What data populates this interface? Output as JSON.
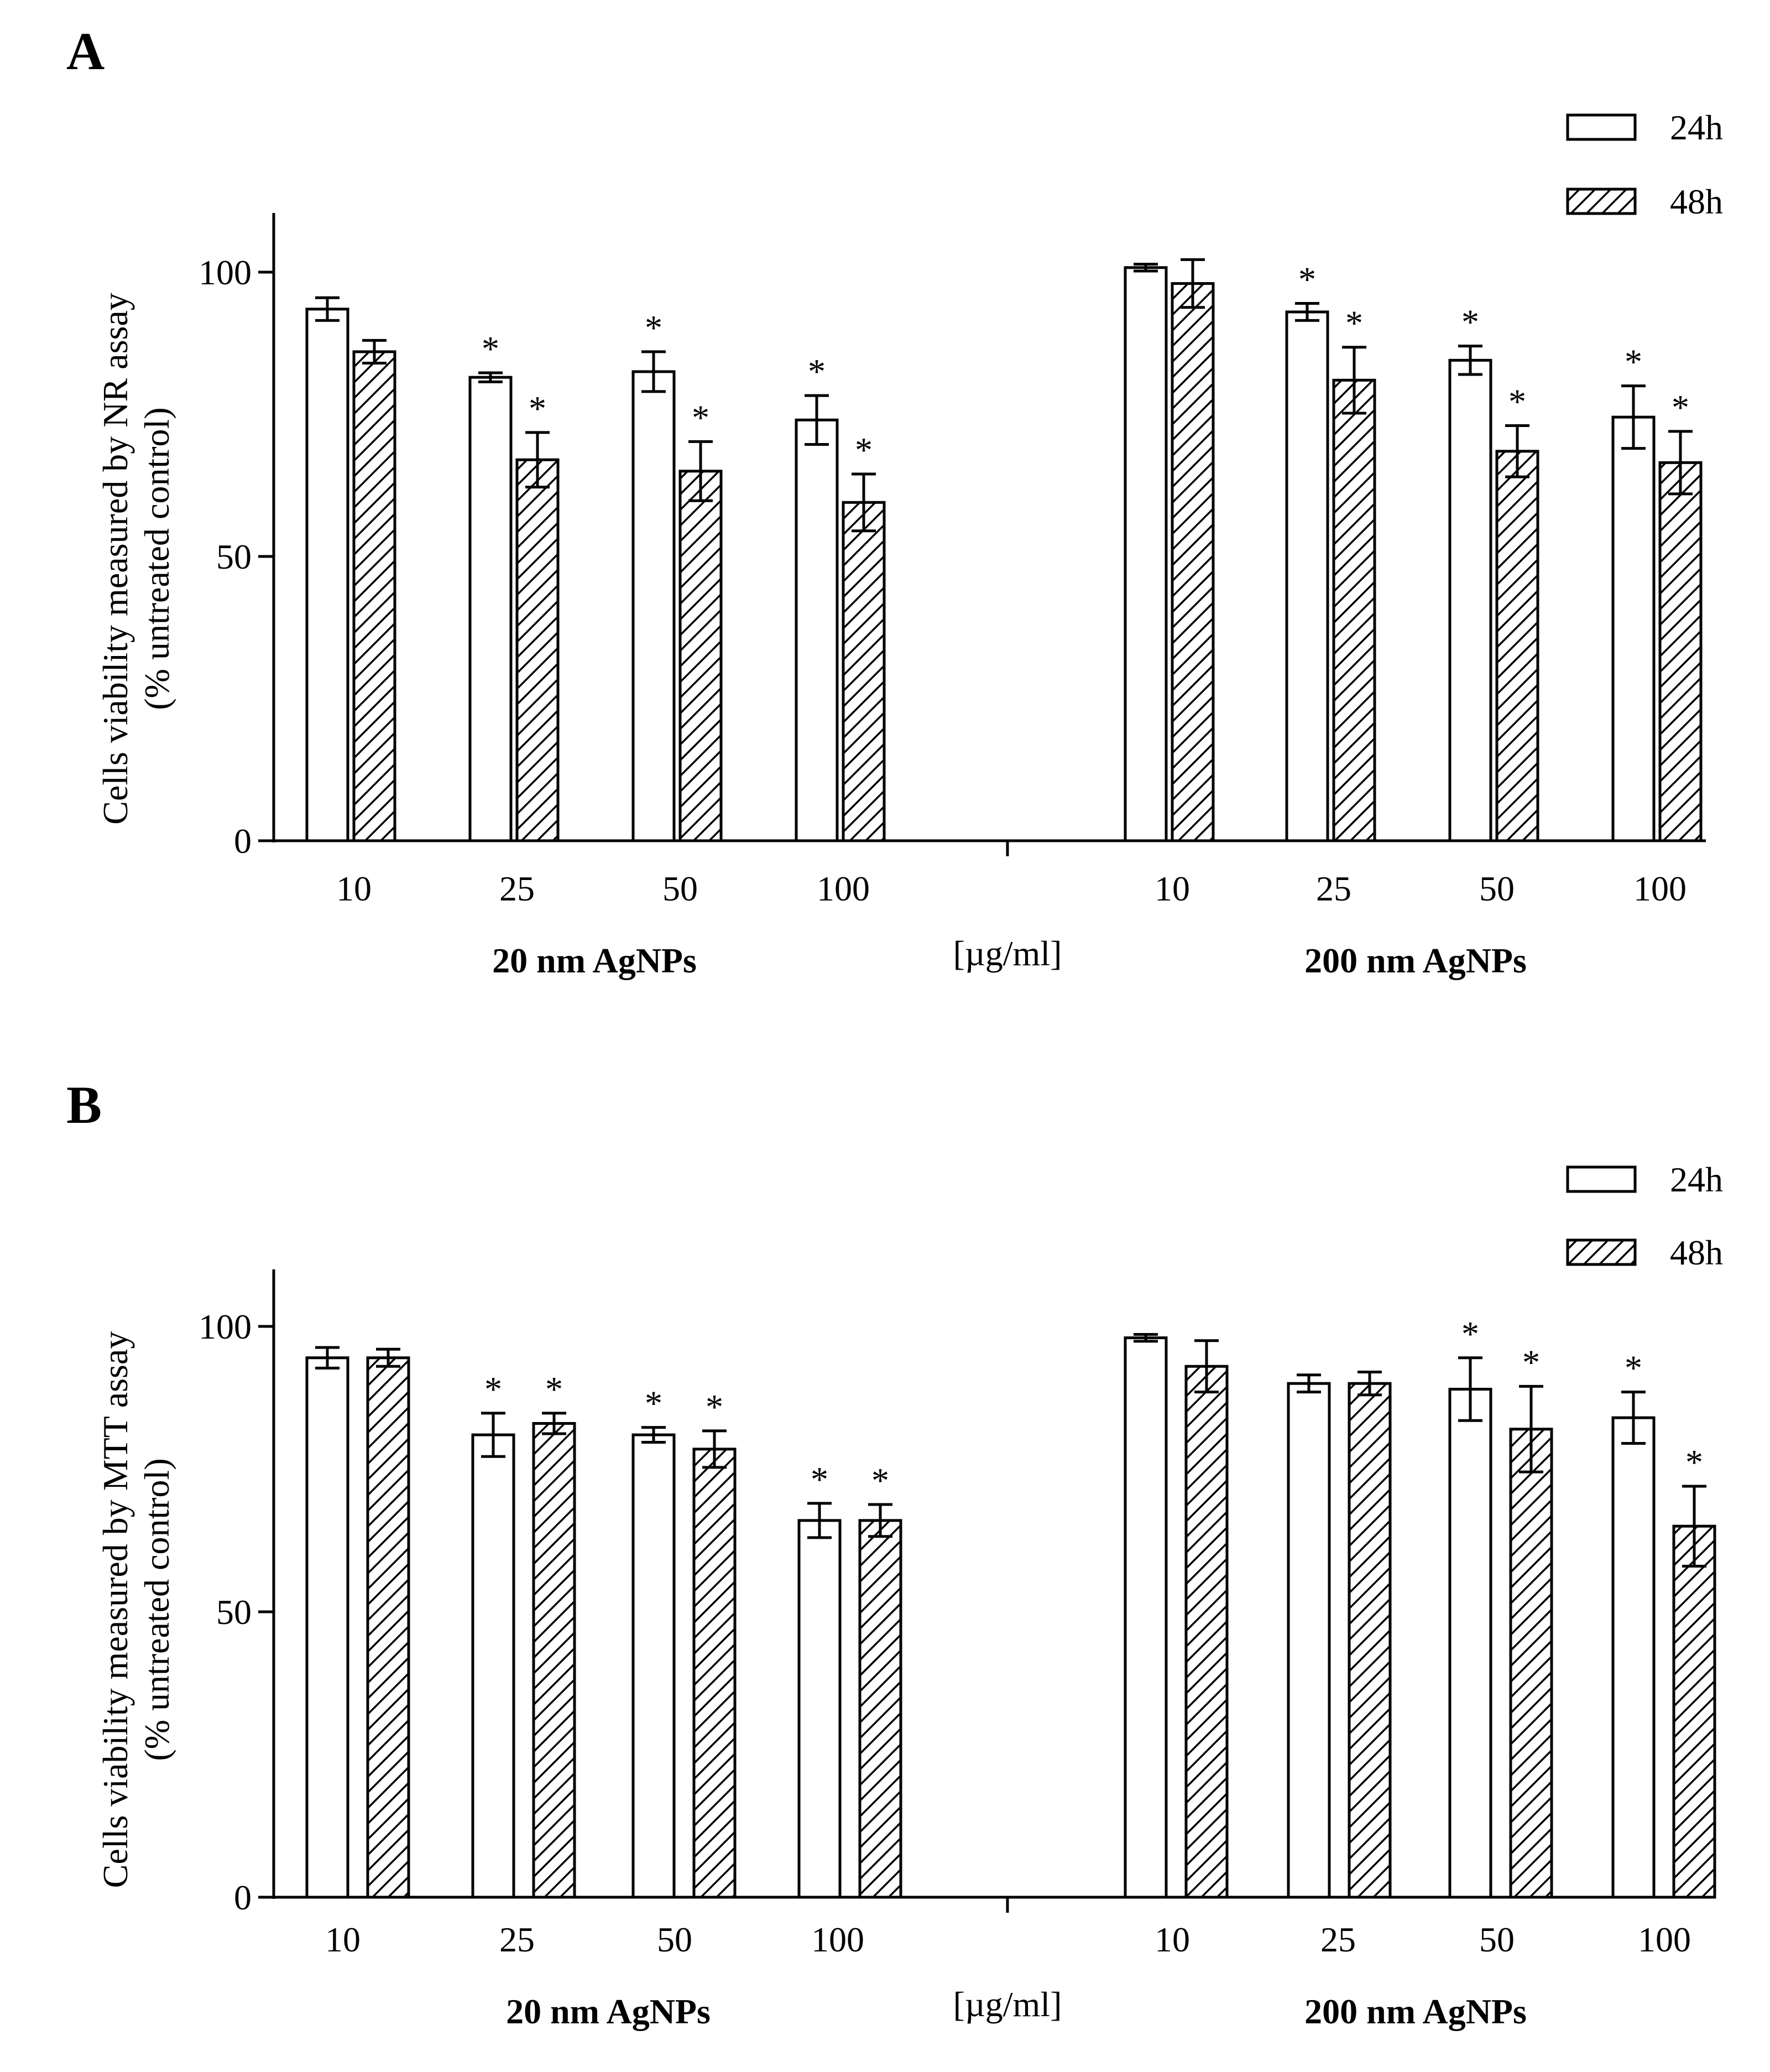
{
  "chart_data": [
    {
      "type": "bar",
      "panel_label": "A",
      "ylabel": [
        "Cells viability measured by NR assay",
        "(% untreated control)"
      ],
      "ylim": [
        0,
        110
      ],
      "yticks": [
        0,
        50,
        100
      ],
      "unit_label": "[µg/ml]",
      "legend": [
        {
          "name": "24h",
          "pattern": "open"
        },
        {
          "name": "48h",
          "pattern": "hatched"
        }
      ],
      "groups": [
        {
          "label": "20 nm AgNPs",
          "categories": [
            "10",
            "25",
            "50",
            "100"
          ],
          "series": [
            {
              "name": "24h",
              "values": [
                93.5,
                81.5,
                82.5,
                74.0
              ],
              "errors": [
                2.0,
                0.8,
                3.5,
                4.3
              ],
              "significant": [
                false,
                true,
                true,
                true
              ]
            },
            {
              "name": "48h",
              "values": [
                86.0,
                67.0,
                65.0,
                59.5
              ],
              "errors": [
                2.0,
                4.8,
                5.2,
                5.0
              ],
              "significant": [
                false,
                true,
                true,
                true
              ]
            }
          ]
        },
        {
          "label": "200 nm AgNPs",
          "categories": [
            "10",
            "25",
            "50",
            "100"
          ],
          "series": [
            {
              "name": "24h",
              "values": [
                100.8,
                93.0,
                84.5,
                74.5
              ],
              "errors": [
                0.6,
                1.5,
                2.5,
                5.5
              ],
              "significant": [
                false,
                true,
                true,
                true
              ]
            },
            {
              "name": "48h",
              "values": [
                98.0,
                81.0,
                68.5,
                66.5
              ],
              "errors": [
                4.2,
                5.8,
                4.5,
                5.5
              ],
              "significant": [
                false,
                true,
                true,
                true
              ]
            }
          ]
        }
      ]
    },
    {
      "type": "bar",
      "panel_label": "B",
      "ylabel": [
        "Cells viability measured by MTT assay",
        "(% untreated control)"
      ],
      "ylim": [
        0,
        110
      ],
      "yticks": [
        0,
        50,
        100
      ],
      "unit_label": "[µg/ml]",
      "legend": [
        {
          "name": "24h",
          "pattern": "open"
        },
        {
          "name": "48h",
          "pattern": "hatched"
        }
      ],
      "groups": [
        {
          "label": "20 nm AgNPs",
          "categories": [
            "10",
            "25",
            "50",
            "100"
          ],
          "series": [
            {
              "name": "24h",
              "values": [
                94.5,
                81.0,
                81.0,
                66.0
              ],
              "errors": [
                1.8,
                3.8,
                1.3,
                3.0
              ],
              "significant": [
                false,
                true,
                true,
                true
              ]
            },
            {
              "name": "48h",
              "values": [
                94.5,
                83.0,
                78.5,
                66.0
              ],
              "errors": [
                1.5,
                1.8,
                3.2,
                2.8
              ],
              "significant": [
                false,
                true,
                true,
                true
              ]
            }
          ]
        },
        {
          "label": "200 nm AgNPs",
          "categories": [
            "10",
            "25",
            "50",
            "100"
          ],
          "series": [
            {
              "name": "24h",
              "values": [
                98.0,
                90.0,
                89.0,
                84.0
              ],
              "errors": [
                0.6,
                1.5,
                5.5,
                4.5
              ],
              "significant": [
                false,
                false,
                true,
                true
              ]
            },
            {
              "name": "48h",
              "values": [
                93.0,
                90.0,
                82.0,
                65.0
              ],
              "errors": [
                4.5,
                2.0,
                7.5,
                7.0
              ],
              "significant": [
                false,
                false,
                true,
                true
              ]
            }
          ]
        }
      ]
    }
  ]
}
